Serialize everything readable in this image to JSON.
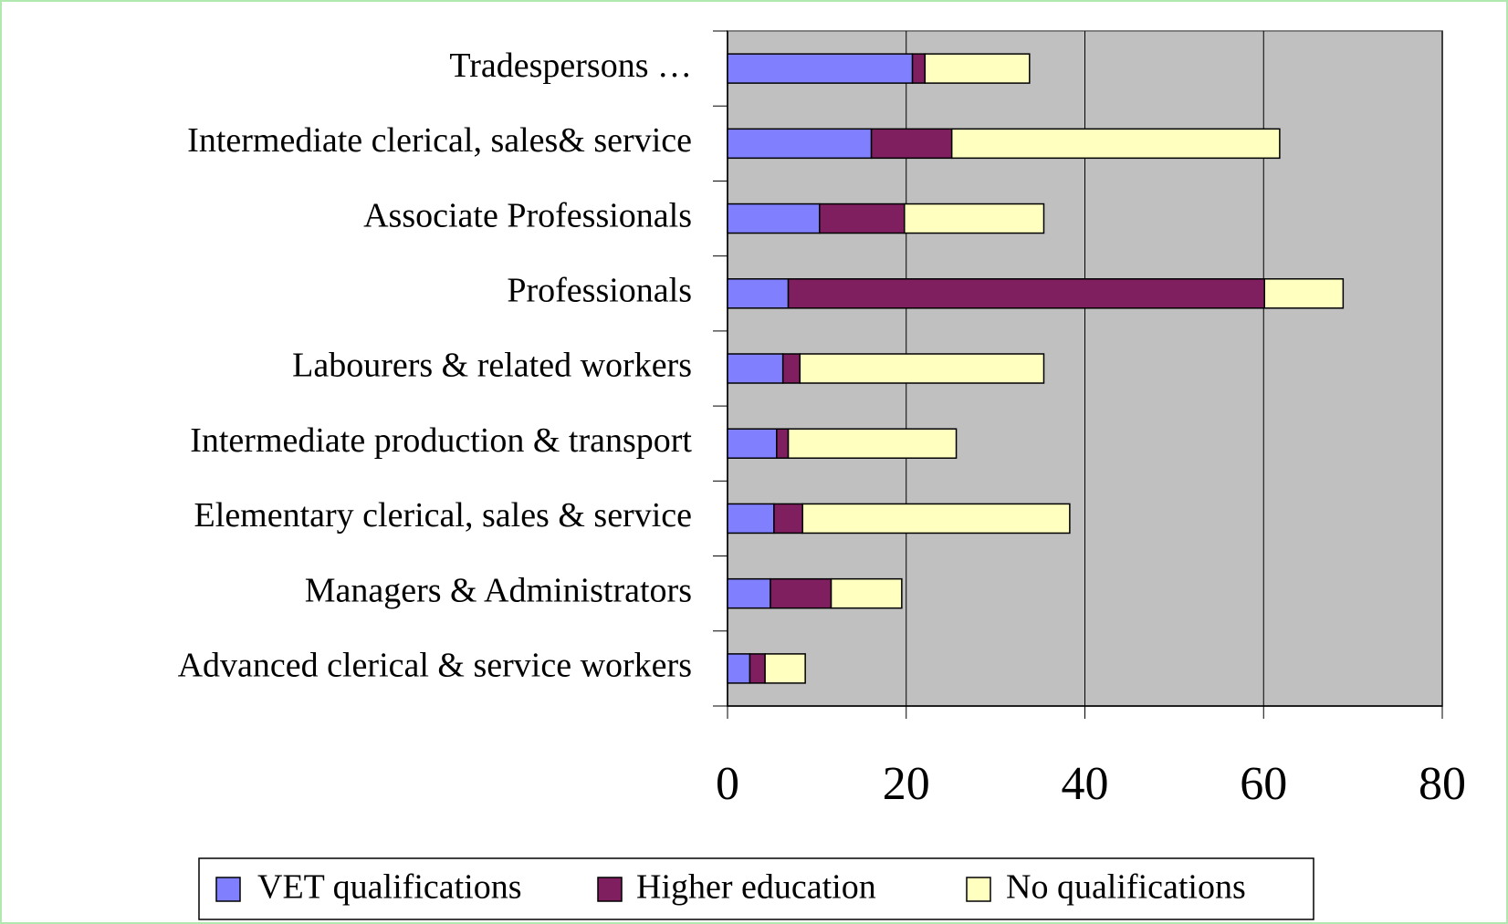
{
  "chart_data": {
    "type": "stacked_barh",
    "categories": [
      "Tradespersons …",
      "Intermediate clerical, sales& service",
      "Associate Professionals",
      "Professionals",
      "Labourers & related workers",
      "Intermediate production & transport",
      "Elementary clerical, sales & service",
      "Managers & Administrators",
      "Advanced clerical & service workers"
    ],
    "series": [
      {
        "name": "VET qualifications",
        "color": "#8080ff",
        "values": [
          20.7,
          16.1,
          10.3,
          6.8,
          6.2,
          5.5,
          5.2,
          4.8,
          2.5
        ]
      },
      {
        "name": "Higher education",
        "color": "#801f60",
        "values": [
          1.4,
          9.0,
          9.5,
          53.3,
          1.9,
          1.3,
          3.2,
          6.8,
          1.7
        ]
      },
      {
        "name": "No qualifications",
        "color": "#ffffc0",
        "values": [
          11.7,
          36.7,
          15.6,
          8.8,
          27.3,
          18.8,
          29.9,
          7.9,
          4.5
        ]
      }
    ],
    "xlim": [
      0,
      80
    ],
    "xticks": [
      0,
      20,
      40,
      60,
      80
    ],
    "grid": true,
    "legend": "bottom"
  }
}
